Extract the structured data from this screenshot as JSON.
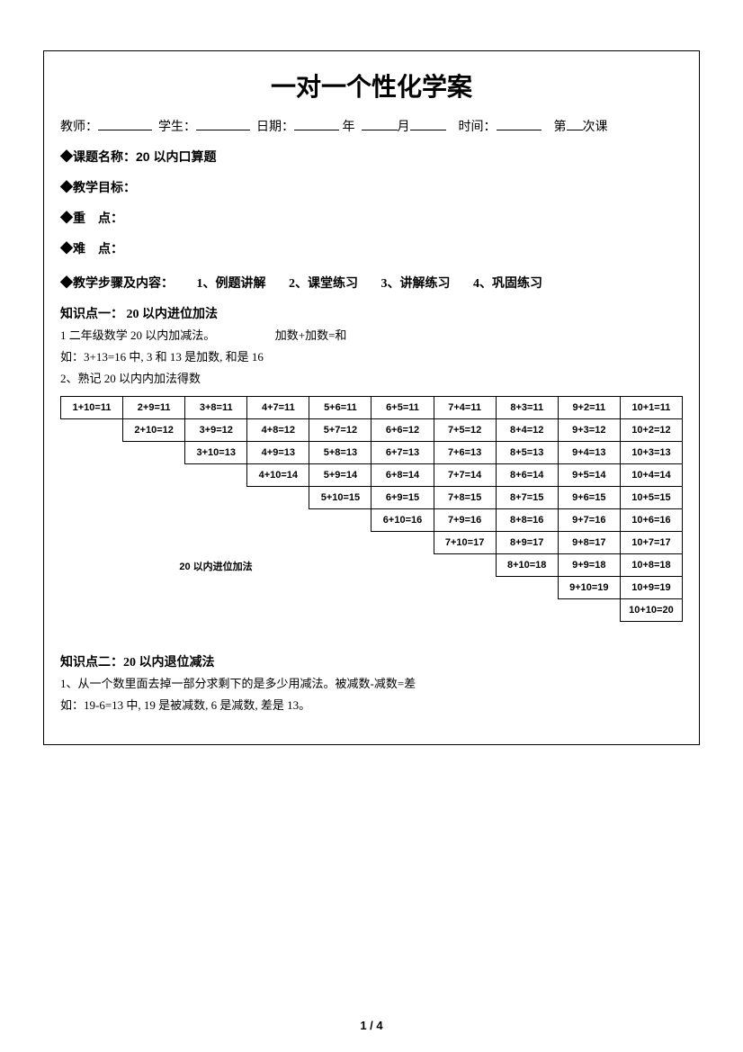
{
  "title": "一对一个性化学案",
  "info": {
    "teacher_label": "教师：",
    "student_label": "学生：",
    "date_label": "日期：",
    "year_label": "年",
    "month_label": "月",
    "time_label": "时间：",
    "session_prefix": "第",
    "session_suffix": "次课"
  },
  "sections": {
    "topic_label": "◆课题名称：",
    "topic_value": "20 以内口算题",
    "goal": "◆教学目标：",
    "keypoint": "◆重　点：",
    "hardpoint": "◆难　点：",
    "steps_label": "◆教学步骤及内容：",
    "steps": [
      "1、例题讲解",
      "2、课堂练习",
      "3、讲解练习",
      "4、巩固练习"
    ]
  },
  "kp1": {
    "title": "知识点一：  20 以内进位加法",
    "line1a": "1 二年级数学 20 以内加减法。",
    "line1b": "加数+加数=和",
    "line2": "如：3+13=16 中, 3 和 13 是加数, 和是 16",
    "line3": "2、熟记 20 以内内加法得数"
  },
  "addition_table": {
    "caption": "20 以内进位加法",
    "cols": 10,
    "cell_fontsize": 11,
    "border_color": "#000000",
    "rows": [
      [
        "1+10=11",
        "2+9=11",
        "3+8=11",
        "4+7=11",
        "5+6=11",
        "6+5=11",
        "7+4=11",
        "8+3=11",
        "9+2=11",
        "10+1=11"
      ],
      [
        null,
        "2+10=12",
        "3+9=12",
        "4+8=12",
        "5+7=12",
        "6+6=12",
        "7+5=12",
        "8+4=12",
        "9+3=12",
        "10+2=12"
      ],
      [
        null,
        null,
        "3+10=13",
        "4+9=13",
        "5+8=13",
        "6+7=13",
        "7+6=13",
        "8+5=13",
        "9+4=13",
        "10+3=13"
      ],
      [
        null,
        null,
        null,
        "4+10=14",
        "5+9=14",
        "6+8=14",
        "7+7=14",
        "8+6=14",
        "9+5=14",
        "10+4=14"
      ],
      [
        null,
        null,
        null,
        null,
        "5+10=15",
        "6+9=15",
        "7+8=15",
        "8+7=15",
        "9+6=15",
        "10+5=15"
      ],
      [
        null,
        null,
        null,
        null,
        null,
        "6+10=16",
        "7+9=16",
        "8+8=16",
        "9+7=16",
        "10+6=16"
      ],
      [
        null,
        null,
        null,
        null,
        null,
        null,
        "7+10=17",
        "8+9=17",
        "9+8=17",
        "10+7=17"
      ],
      [
        null,
        null,
        null,
        null,
        null,
        null,
        null,
        "8+10=18",
        "9+9=18",
        "10+8=18"
      ],
      [
        null,
        null,
        null,
        null,
        null,
        null,
        null,
        null,
        "9+10=19",
        "10+9=19"
      ],
      [
        null,
        null,
        null,
        null,
        null,
        null,
        null,
        null,
        null,
        "10+10=20"
      ]
    ]
  },
  "kp2": {
    "title": "知识点二：20 以内退位减法",
    "line1": "1、从一个数里面去掉一部分求剩下的是多少用减法。被减数-减数=差",
    "line2": "如：19-6=13 中, 19 是被减数, 6 是减数, 差是 13。"
  },
  "page_number": "1 / 4",
  "colors": {
    "text": "#000000",
    "background": "#ffffff",
    "border": "#000000"
  }
}
